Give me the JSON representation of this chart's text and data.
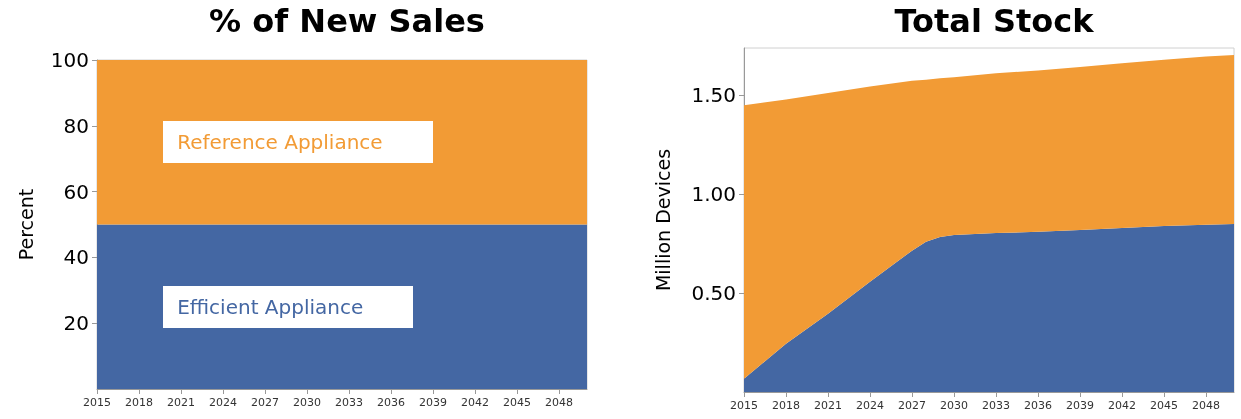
{
  "chart_data": [
    {
      "type": "area",
      "title": "% of New Sales",
      "ylabel": "Percent",
      "stacked": true,
      "marker": "none",
      "grid": false,
      "x": [
        2015,
        2050
      ],
      "series": [
        {
          "name": "Efficient Appliance",
          "color": "#4467a3",
          "values": [
            50,
            50
          ]
        },
        {
          "name": "Reference Appliance",
          "color": "#f29b35",
          "values": [
            50,
            50
          ]
        }
      ],
      "xlim": [
        2015,
        2050
      ],
      "xticks": [
        2015,
        2018,
        2021,
        2024,
        2027,
        2030,
        2033,
        2036,
        2039,
        2042,
        2045,
        2048
      ],
      "ylim": [
        0,
        100
      ],
      "yticks": [
        20,
        40,
        60,
        80,
        100
      ]
    },
    {
      "type": "area",
      "title": "Total Stock",
      "ylabel": "Million Devices",
      "stacked": true,
      "marker": "none",
      "grid": false,
      "x": [
        2015,
        2018,
        2021,
        2024,
        2027,
        2028,
        2029,
        2030,
        2033,
        2036,
        2039,
        2042,
        2045,
        2048,
        2050
      ],
      "series": [
        {
          "color": "#4467a3",
          "values": [
            0.067,
            0.244,
            0.396,
            0.558,
            0.715,
            0.76,
            0.784,
            0.794,
            0.804,
            0.81,
            0.82,
            0.83,
            0.84,
            0.846,
            0.85
          ]
        },
        {
          "color": "#f29b35",
          "values": [
            1.383,
            1.236,
            1.117,
            0.987,
            0.859,
            0.82,
            0.803,
            0.798,
            0.808,
            0.816,
            0.824,
            0.833,
            0.841,
            0.851,
            0.855
          ]
        }
      ],
      "xlim": [
        2015,
        2050
      ],
      "xticks": [
        2015,
        2018,
        2021,
        2024,
        2027,
        2030,
        2033,
        2036,
        2039,
        2042,
        2045,
        2048
      ],
      "ylim": [
        0,
        1.74
      ],
      "yticks": [
        {
          "value": 0.5,
          "label": "0.50"
        },
        {
          "value": 1.0,
          "label": "1.00"
        },
        {
          "value": 1.5,
          "label": "1.50"
        }
      ]
    }
  ]
}
